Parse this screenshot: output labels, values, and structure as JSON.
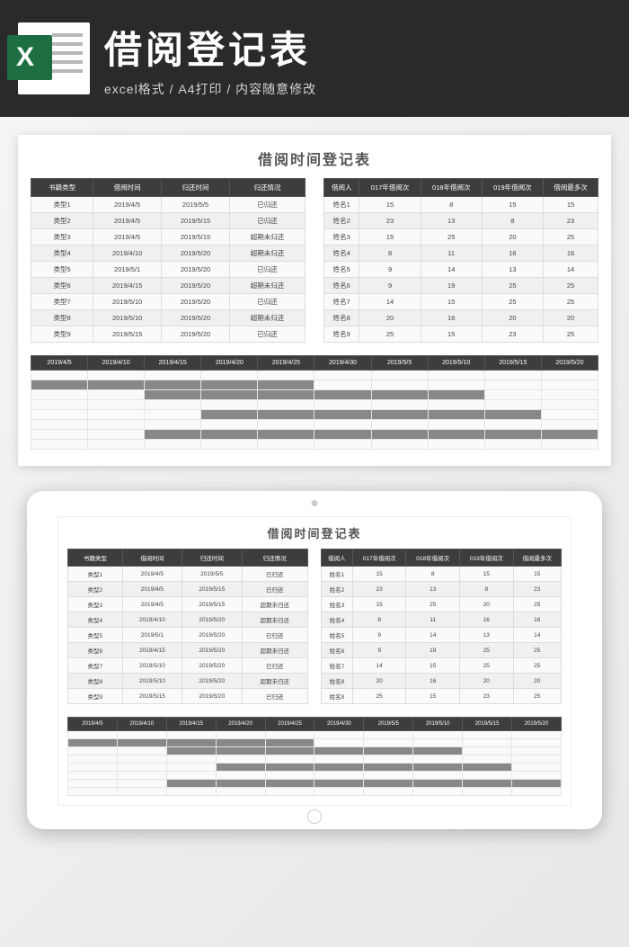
{
  "header": {
    "title": "借阅登记表",
    "subtitle": "excel格式 / A4打印 / 内容随意修改"
  },
  "sheet": {
    "title": "借阅时间登记表",
    "left_table": {
      "columns": [
        "书籍类型",
        "借阅时间",
        "归还时间",
        "归还情况"
      ],
      "rows": [
        [
          "类型1",
          "2019/4/5",
          "2019/5/5",
          "已归还"
        ],
        [
          "类型2",
          "2019/4/5",
          "2019/5/15",
          "已归还"
        ],
        [
          "类型3",
          "2019/4/5",
          "2019/5/15",
          "超期未归还"
        ],
        [
          "类型4",
          "2019/4/10",
          "2019/5/20",
          "超期未归还"
        ],
        [
          "类型5",
          "2019/5/1",
          "2019/5/20",
          "已归还"
        ],
        [
          "类型6",
          "2019/4/15",
          "2019/5/20",
          "超期未归还"
        ],
        [
          "类型7",
          "2019/5/10",
          "2019/5/20",
          "已归还"
        ],
        [
          "类型8",
          "2019/5/10",
          "2019/5/20",
          "超期未归还"
        ],
        [
          "类型9",
          "2019/5/15",
          "2019/5/20",
          "已归还"
        ]
      ]
    },
    "right_table": {
      "columns": [
        "借阅人",
        "017年借阅次",
        "018年借阅次",
        "019年借阅次",
        "借阅最多次"
      ],
      "rows": [
        [
          "姓名1",
          "15",
          "8",
          "15",
          "15"
        ],
        [
          "姓名2",
          "23",
          "13",
          "8",
          "23"
        ],
        [
          "姓名3",
          "15",
          "25",
          "20",
          "25"
        ],
        [
          "姓名4",
          "8",
          "11",
          "16",
          "16"
        ],
        [
          "姓名5",
          "9",
          "14",
          "13",
          "14"
        ],
        [
          "姓名6",
          "9",
          "19",
          "25",
          "25"
        ],
        [
          "姓名7",
          "14",
          "15",
          "25",
          "25"
        ],
        [
          "姓名8",
          "20",
          "16",
          "20",
          "20"
        ],
        [
          "姓名9",
          "25",
          "15",
          "23",
          "25"
        ]
      ]
    },
    "gantt": {
      "dates": [
        "2019/4/5",
        "2019/4/10",
        "2019/4/15",
        "2019/4/20",
        "2019/4/25",
        "2019/4/30",
        "2019/5/5",
        "2019/5/10",
        "2019/5/15",
        "2019/5/20"
      ],
      "rows": [
        [
          0,
          0,
          0,
          0,
          0,
          0,
          0,
          0,
          0,
          0
        ],
        [
          1,
          1,
          1,
          1,
          1,
          0,
          0,
          0,
          0,
          0
        ],
        [
          0,
          0,
          1,
          1,
          1,
          1,
          1,
          1,
          0,
          0
        ],
        [
          0,
          0,
          0,
          0,
          0,
          0,
          0,
          0,
          0,
          0
        ],
        [
          0,
          0,
          0,
          1,
          1,
          1,
          1,
          1,
          1,
          0
        ],
        [
          0,
          0,
          0,
          0,
          0,
          0,
          0,
          0,
          0,
          0
        ],
        [
          0,
          0,
          1,
          1,
          1,
          1,
          1,
          1,
          1,
          1
        ],
        [
          0,
          0,
          0,
          0,
          0,
          0,
          0,
          0,
          0,
          0
        ]
      ]
    }
  },
  "colors": {
    "header_bg": "#2a2a2a",
    "table_header_bg": "#3d3d3d",
    "gantt_fill": "#888888",
    "excel_green": "#1d6f42"
  }
}
